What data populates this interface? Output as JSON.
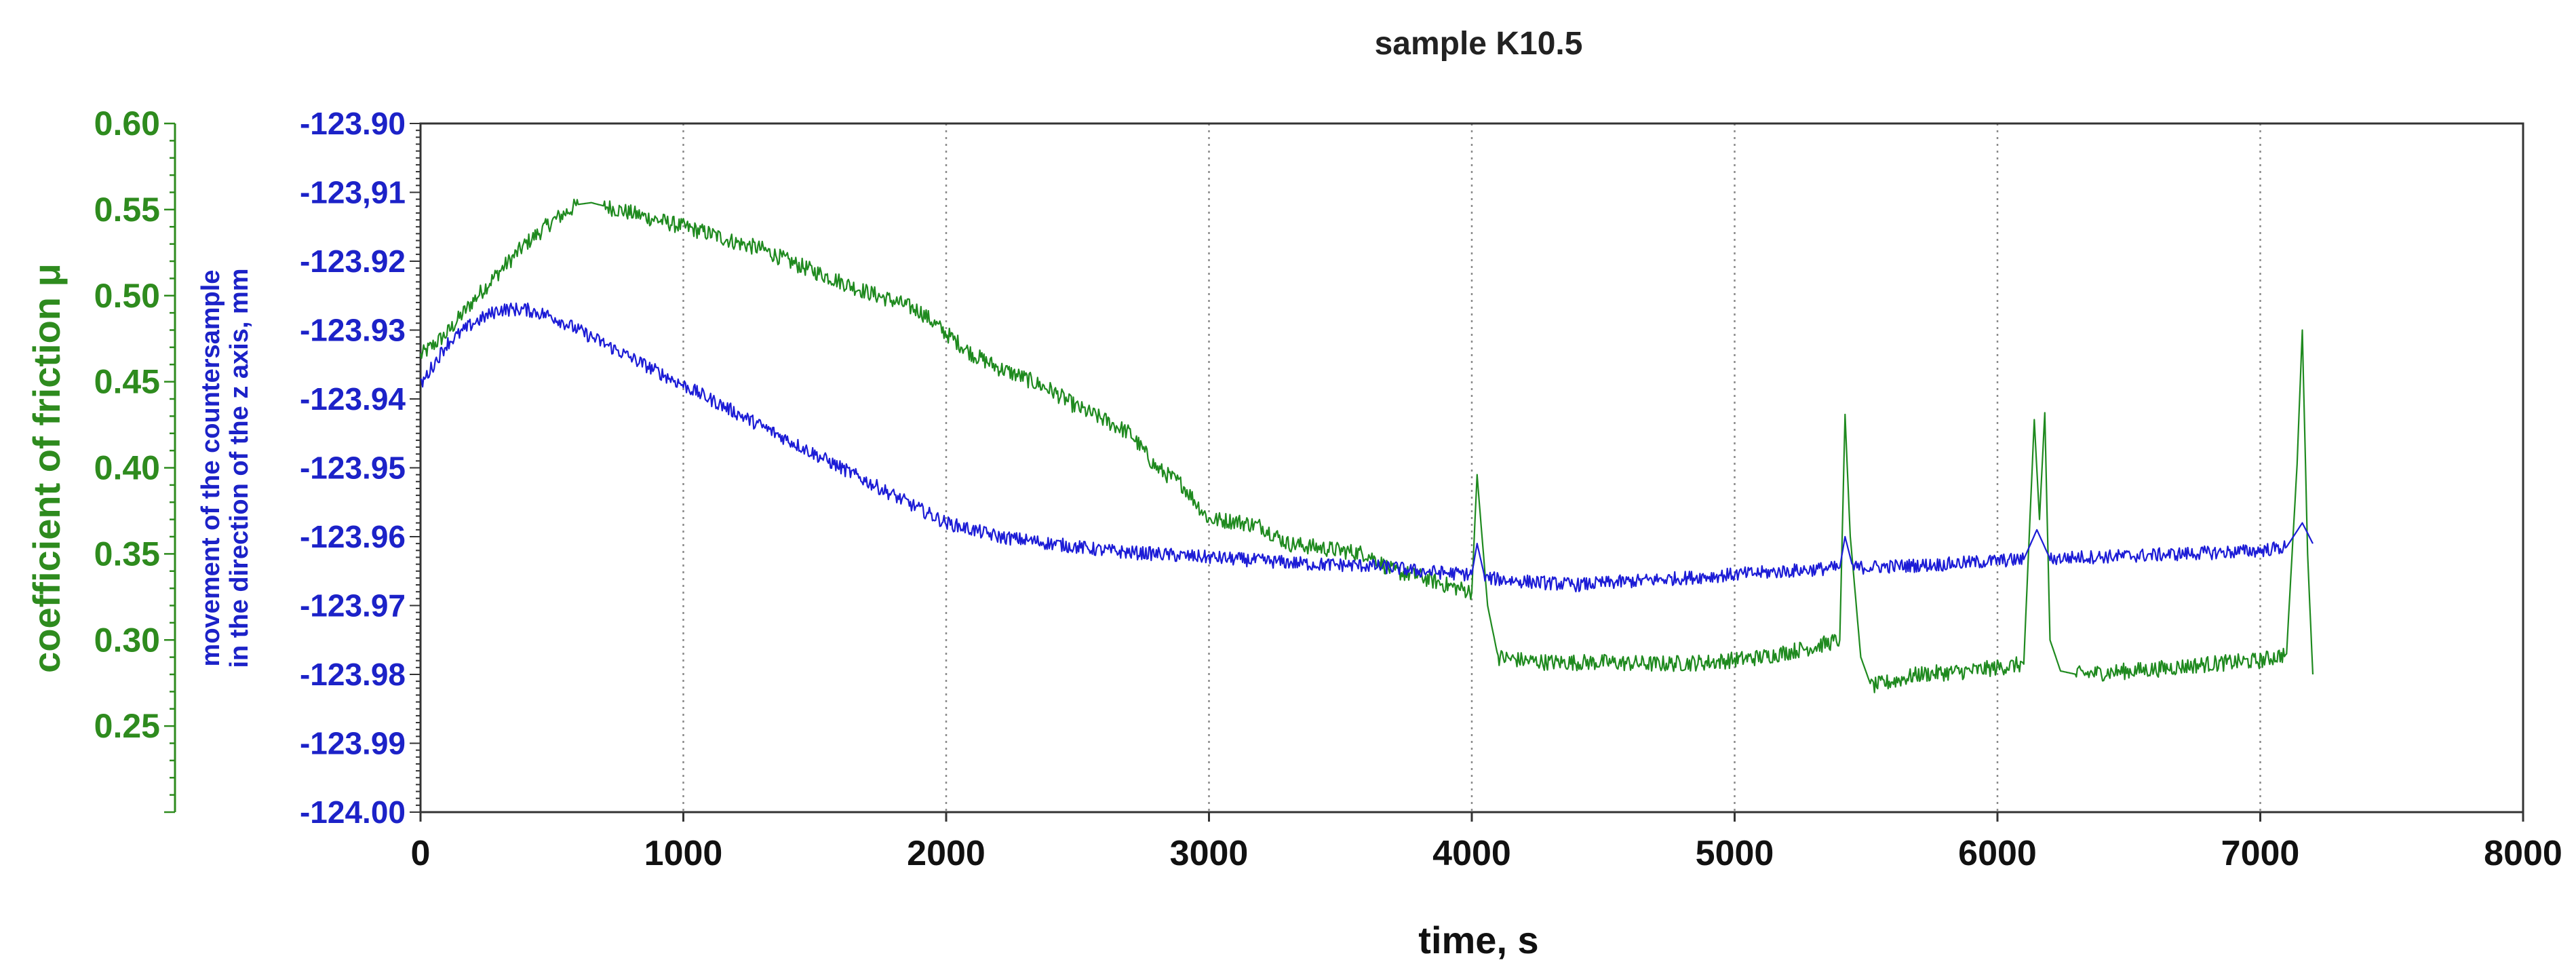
{
  "chart_data": {
    "type": "line",
    "title": "sample K10.5",
    "xlabel": "time, s",
    "ylabel_left": "coefficient of friction μ",
    "ylabel_right_line1": "movement of the countersample",
    "ylabel_right_line2": "in the direction of the z axis, mm",
    "xlim": [
      0,
      8000
    ],
    "x_ticks": [
      "0",
      "1000",
      "2000",
      "3000",
      "4000",
      "5000",
      "6000",
      "7000",
      "8000"
    ],
    "y_left_lim": [
      0.2,
      0.6
    ],
    "y_left_ticks": [
      {
        "value": 0.6,
        "label": "0.60"
      },
      {
        "value": 0.55,
        "label": "0.55"
      },
      {
        "value": 0.5,
        "label": "0.50"
      },
      {
        "value": 0.45,
        "label": "0.45"
      },
      {
        "value": 0.4,
        "label": "0.40"
      },
      {
        "value": 0.35,
        "label": "0.35"
      },
      {
        "value": 0.3,
        "label": "0.30"
      },
      {
        "value": 0.25,
        "label": "0.25"
      }
    ],
    "y_right_lim": [
      -124.0,
      -123.9
    ],
    "y_right_ticks": [
      {
        "value": -123.9,
        "label": "-123.90"
      },
      {
        "value": -123.91,
        "label": "-123,91"
      },
      {
        "value": -123.92,
        "label": "-123.92"
      },
      {
        "value": -123.93,
        "label": "-123.93"
      },
      {
        "value": -123.94,
        "label": "-123.94"
      },
      {
        "value": -123.95,
        "label": "-123.95"
      },
      {
        "value": -123.96,
        "label": "-123.96"
      },
      {
        "value": -123.97,
        "label": "-123.97"
      },
      {
        "value": -123.98,
        "label": "-123.98"
      },
      {
        "value": -123.99,
        "label": "-123.99"
      },
      {
        "value": -124.0,
        "label": "-124.00"
      }
    ],
    "grid": {
      "vertical_dotted": true,
      "horizontal": false
    },
    "series": [
      {
        "name": "coefficient of friction",
        "axis": "left",
        "color": "#1f8a1f",
        "x": [
          0,
          100,
          200,
          300,
          400,
          500,
          600,
          650,
          700,
          800,
          900,
          1000,
          1100,
          1200,
          1300,
          1400,
          1500,
          1600,
          1700,
          1800,
          1900,
          2000,
          2100,
          2200,
          2300,
          2400,
          2500,
          2600,
          2700,
          2800,
          2900,
          3000,
          3100,
          3200,
          3300,
          3400,
          3500,
          3600,
          3700,
          3800,
          3900,
          4000,
          4020,
          4060,
          4100,
          4200,
          4300,
          4500,
          4700,
          4900,
          5100,
          5300,
          5400,
          5420,
          5440,
          5480,
          5520,
          5600,
          5700,
          5900,
          6100,
          6140,
          6160,
          6180,
          6200,
          6240,
          6300,
          6400,
          6600,
          6800,
          7000,
          7100,
          7140,
          7160,
          7180,
          7200
        ],
        "values": [
          0.465,
          0.478,
          0.497,
          0.514,
          0.53,
          0.543,
          0.553,
          0.554,
          0.552,
          0.548,
          0.544,
          0.54,
          0.536,
          0.531,
          0.527,
          0.52,
          0.514,
          0.508,
          0.502,
          0.497,
          0.491,
          0.478,
          0.466,
          0.458,
          0.452,
          0.445,
          0.435,
          0.428,
          0.42,
          0.4,
          0.39,
          0.37,
          0.369,
          0.366,
          0.356,
          0.354,
          0.352,
          0.35,
          0.34,
          0.337,
          0.332,
          0.328,
          0.396,
          0.32,
          0.29,
          0.288,
          0.287,
          0.287,
          0.286,
          0.287,
          0.29,
          0.296,
          0.3,
          0.431,
          0.36,
          0.29,
          0.273,
          0.276,
          0.28,
          0.282,
          0.286,
          0.428,
          0.37,
          0.432,
          0.3,
          0.282,
          0.28,
          0.281,
          0.283,
          0.286,
          0.288,
          0.292,
          0.402,
          0.48,
          0.35,
          0.28
        ]
      },
      {
        "name": "movement of the countersample",
        "axis": "right",
        "color": "#1c1cd6",
        "x": [
          0,
          100,
          200,
          300,
          400,
          500,
          600,
          700,
          800,
          900,
          1000,
          1100,
          1200,
          1300,
          1400,
          1500,
          1600,
          1700,
          1800,
          1900,
          2000,
          2100,
          2200,
          2300,
          2400,
          2500,
          2600,
          2700,
          2800,
          2900,
          3000,
          3200,
          3400,
          3600,
          3700,
          3800,
          4000,
          4020,
          4050,
          4200,
          4400,
          4600,
          4800,
          5000,
          5200,
          5400,
          5420,
          5450,
          5600,
          5800,
          6000,
          6100,
          6150,
          6200,
          6300,
          6500,
          6700,
          6900,
          7000,
          7100,
          7160,
          7200
        ],
        "values": [
          -123.938,
          -123.932,
          -123.929,
          -123.927,
          -123.927,
          -123.928,
          -123.93,
          -123.932,
          -123.934,
          -123.936,
          -123.938,
          -123.94,
          -123.942,
          -123.944,
          -123.946,
          -123.948,
          -123.95,
          -123.952,
          -123.954,
          -123.956,
          -123.958,
          -123.959,
          -123.96,
          -123.9605,
          -123.961,
          -123.9615,
          -123.962,
          -123.9623,
          -123.9625,
          -123.9628,
          -123.963,
          -123.9635,
          -123.964,
          -123.9642,
          -123.9645,
          -123.965,
          -123.9655,
          -123.961,
          -123.966,
          -123.9665,
          -123.967,
          -123.9665,
          -123.966,
          -123.9655,
          -123.965,
          -123.9645,
          -123.96,
          -123.9645,
          -123.9643,
          -123.964,
          -123.9635,
          -123.9633,
          -123.959,
          -123.9632,
          -123.963,
          -123.9628,
          -123.9625,
          -123.9622,
          -123.962,
          -123.9615,
          -123.958,
          -123.961
        ]
      }
    ]
  }
}
